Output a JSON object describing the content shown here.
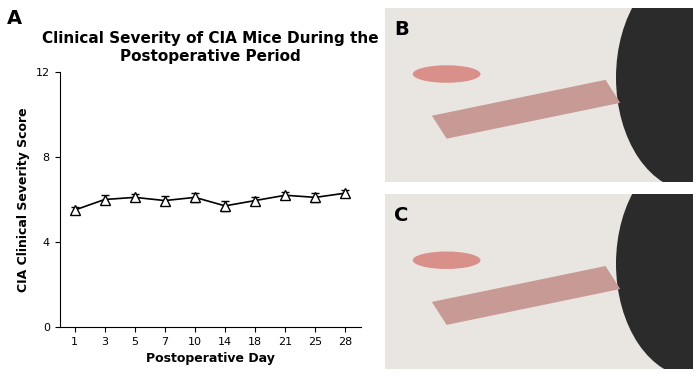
{
  "chart_data": {
    "type": "line",
    "title": "Clinical Severity of CIA Mice During the Postoperative Period",
    "x_label": "Postoperative Day",
    "y_label": "CIA Clinical Severity Score",
    "categories": [
      "1",
      "3",
      "5",
      "7",
      "10",
      "14",
      "18",
      "21",
      "25",
      "28"
    ],
    "values": [
      5.5,
      6.0,
      6.1,
      5.95,
      6.1,
      5.7,
      5.95,
      6.2,
      6.1,
      6.3
    ],
    "errors": [
      0.15,
      0.2,
      0.15,
      0.2,
      0.2,
      0.25,
      0.15,
      0.15,
      0.2,
      0.15
    ],
    "color": "#000000",
    "marker": "triangle",
    "line_style": "solid",
    "ylim": [
      0,
      12
    ],
    "yticks": [
      0,
      4,
      8,
      12
    ],
    "grid": false
  },
  "panel_labels": [
    "A",
    "B",
    "C"
  ]
}
